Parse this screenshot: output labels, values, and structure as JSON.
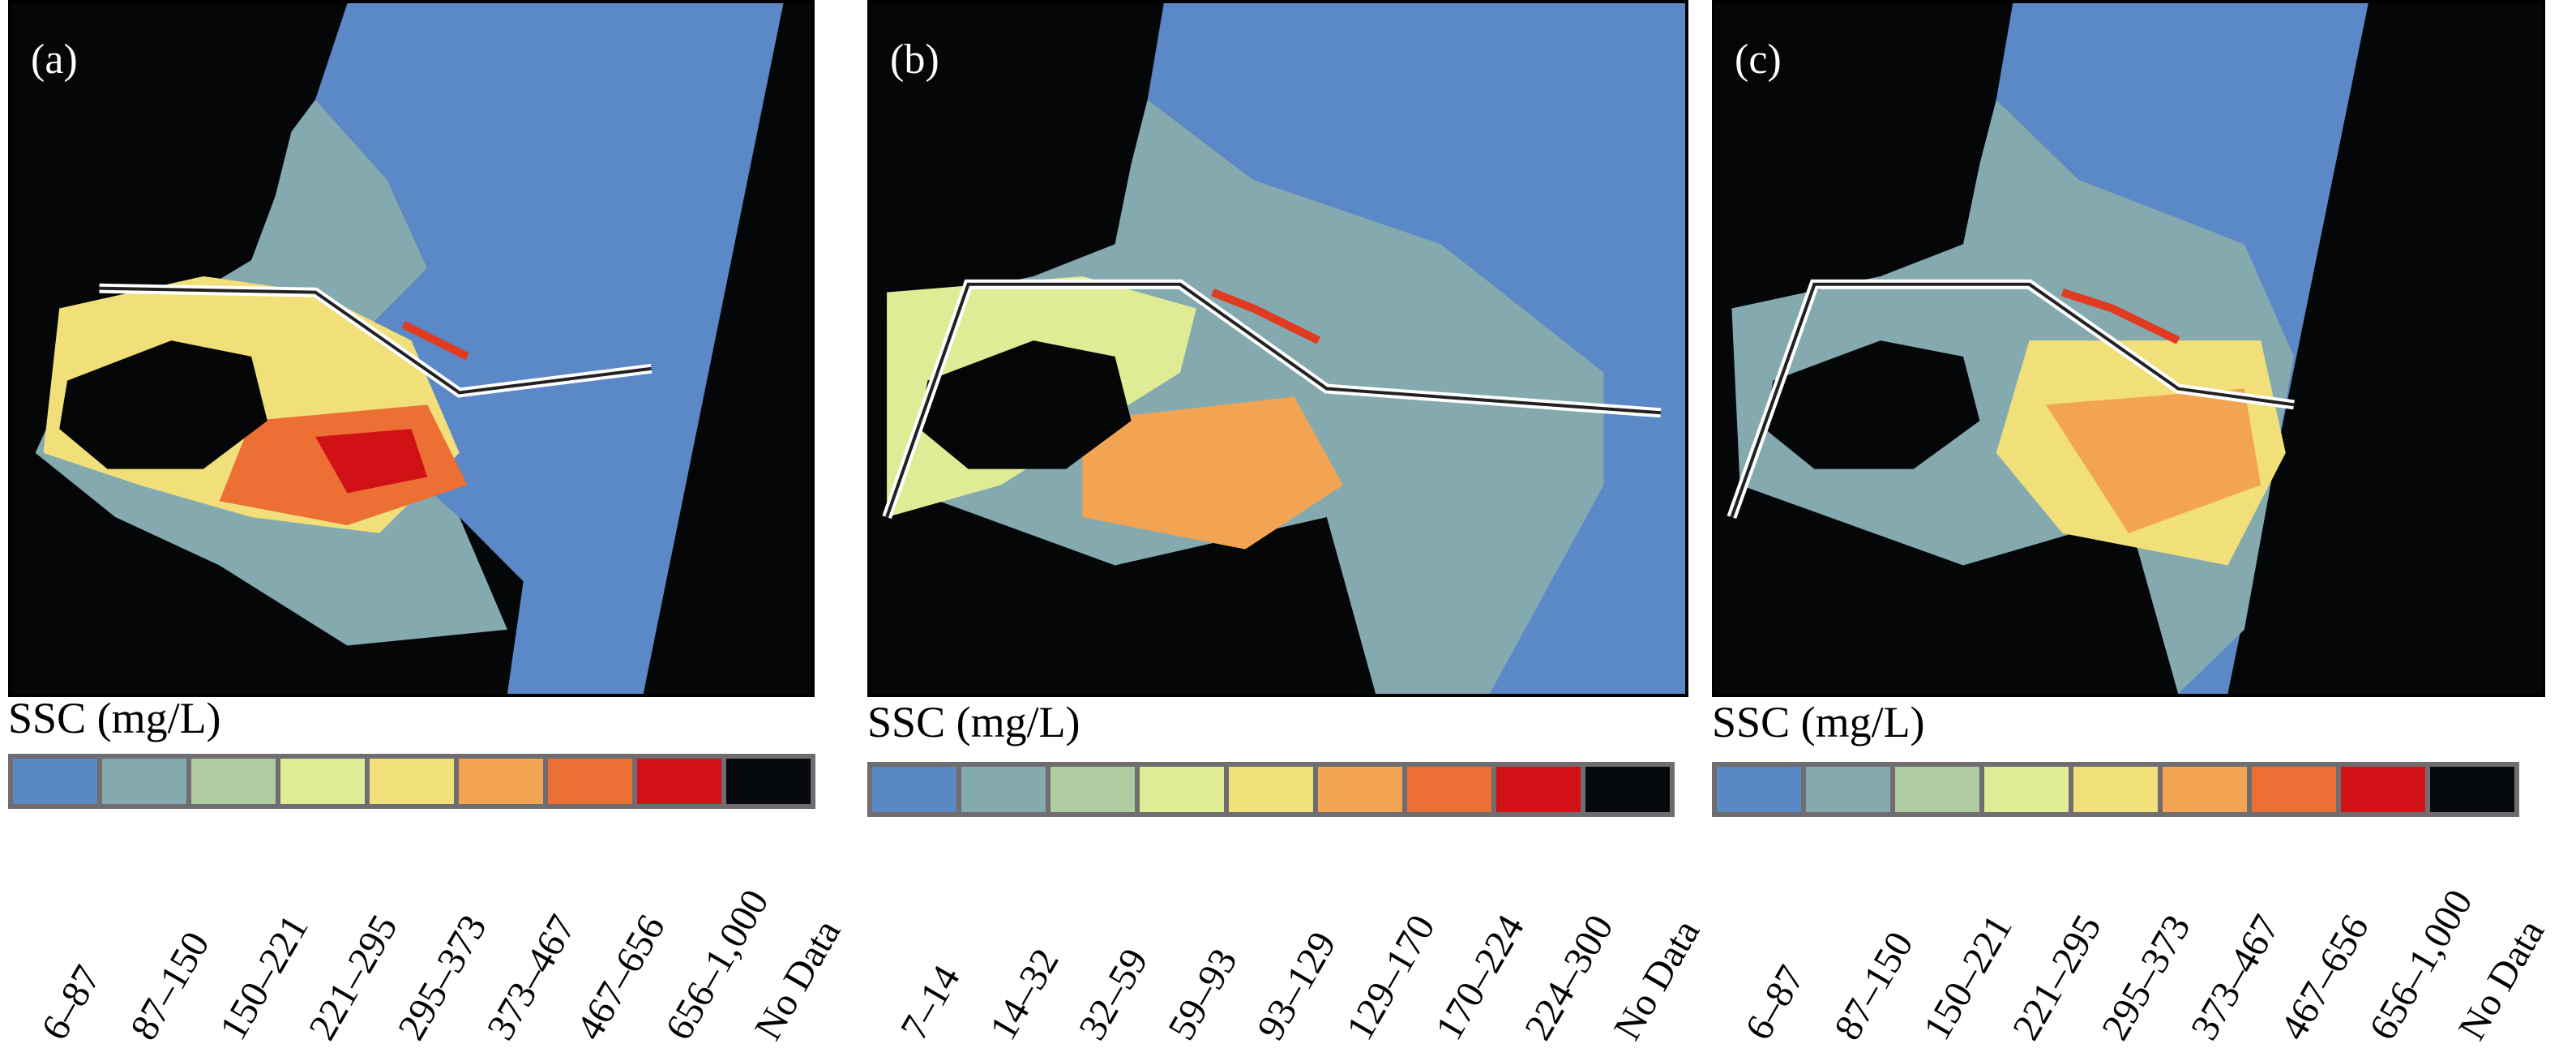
{
  "colors": {
    "ocean": "#5b88c6",
    "land": "#050608",
    "channel": "#ffffff",
    "structure": "#e03a20"
  },
  "panels": [
    {
      "label": "(a)",
      "legend_title": "SSC (mg/L)",
      "classes": [
        {
          "range": "6–87",
          "color": "#5a88c4"
        },
        {
          "range": "87–150",
          "color": "#84aab0"
        },
        {
          "range": "150–221",
          "color": "#afcba0"
        },
        {
          "range": "221–295",
          "color": "#e0eb95"
        },
        {
          "range": "295–373",
          "color": "#f1df7a"
        },
        {
          "range": "373–467",
          "color": "#f3a452"
        },
        {
          "range": "467–656",
          "color": "#ec6f34"
        },
        {
          "range": "656–1,000",
          "color": "#d11116"
        },
        {
          "range": "No Data",
          "color": "#070a0c"
        }
      ]
    },
    {
      "label": "(b)",
      "legend_title": "SSC (mg/L)",
      "classes": [
        {
          "range": "7–14",
          "color": "#5a88c4"
        },
        {
          "range": "14–32",
          "color": "#84aab0"
        },
        {
          "range": "32–59",
          "color": "#afcba0"
        },
        {
          "range": "59–93",
          "color": "#e0eb95"
        },
        {
          "range": "93–129",
          "color": "#f1df7a"
        },
        {
          "range": "129–170",
          "color": "#f3a452"
        },
        {
          "range": "170–224",
          "color": "#ec6f34"
        },
        {
          "range": "224–300",
          "color": "#d11116"
        },
        {
          "range": "No Data",
          "color": "#070a0c"
        }
      ]
    },
    {
      "label": "(c)",
      "legend_title": "SSC (mg/L)",
      "classes": [
        {
          "range": "6–87",
          "color": "#5a88c4"
        },
        {
          "range": "87–150",
          "color": "#84aab0"
        },
        {
          "range": "150–221",
          "color": "#afcba0"
        },
        {
          "range": "221–295",
          "color": "#e0eb95"
        },
        {
          "range": "295–373",
          "color": "#f1df7a"
        },
        {
          "range": "373–467",
          "color": "#f3a452"
        },
        {
          "range": "467–656",
          "color": "#ec6f34"
        },
        {
          "range": "656–1,000",
          "color": "#d11116"
        },
        {
          "range": "No Data",
          "color": "#070a0c"
        }
      ]
    }
  ]
}
